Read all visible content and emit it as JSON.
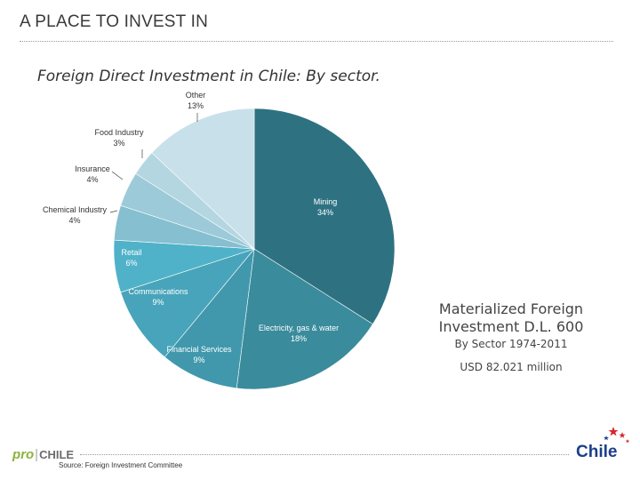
{
  "header": {
    "title": "A PLACE TO INVEST IN"
  },
  "chart_data": {
    "type": "pie",
    "title": "Foreign Direct Investment in Chile: By  sector.",
    "legend": "none",
    "slices": [
      {
        "label": "Mining",
        "value": 34,
        "value_label": "34%",
        "color": "#2e7282"
      },
      {
        "label": "Electricity, gas & water",
        "value": 18,
        "value_label": "18%",
        "color": "#3a8b9c"
      },
      {
        "label": "Financial Services",
        "value": 9,
        "value_label": "9%",
        "color": "#4198ac"
      },
      {
        "label": "Communications",
        "value": 9,
        "value_label": "9%",
        "color": "#48a4ba"
      },
      {
        "label": "Retail",
        "value": 6,
        "value_label": "6%",
        "color": "#4fb2c8"
      },
      {
        "label": "Chemical Industry",
        "value": 4,
        "value_label": "4%",
        "color": "#85bfd0"
      },
      {
        "label": "Insurance",
        "value": 4,
        "value_label": "4%",
        "color": "#9ccad8"
      },
      {
        "label": "Food Industry",
        "value": 3,
        "value_label": "3%",
        "color": "#b4d6e0"
      },
      {
        "label": "Other",
        "value": 13,
        "value_label": "13%",
        "color": "#c8e0ea"
      }
    ]
  },
  "info_box": {
    "title_line1": "Materialized Foreign",
    "title_line2": "Investment D.L. 600",
    "subtitle": "By Sector 1974-2011",
    "amount": "USD 82.021 million"
  },
  "footer": {
    "source": "Source: Foreign Investment Committee",
    "prochile_pro": "pro",
    "prochile_chile": "CHILE",
    "chile_brand": "Chile"
  }
}
